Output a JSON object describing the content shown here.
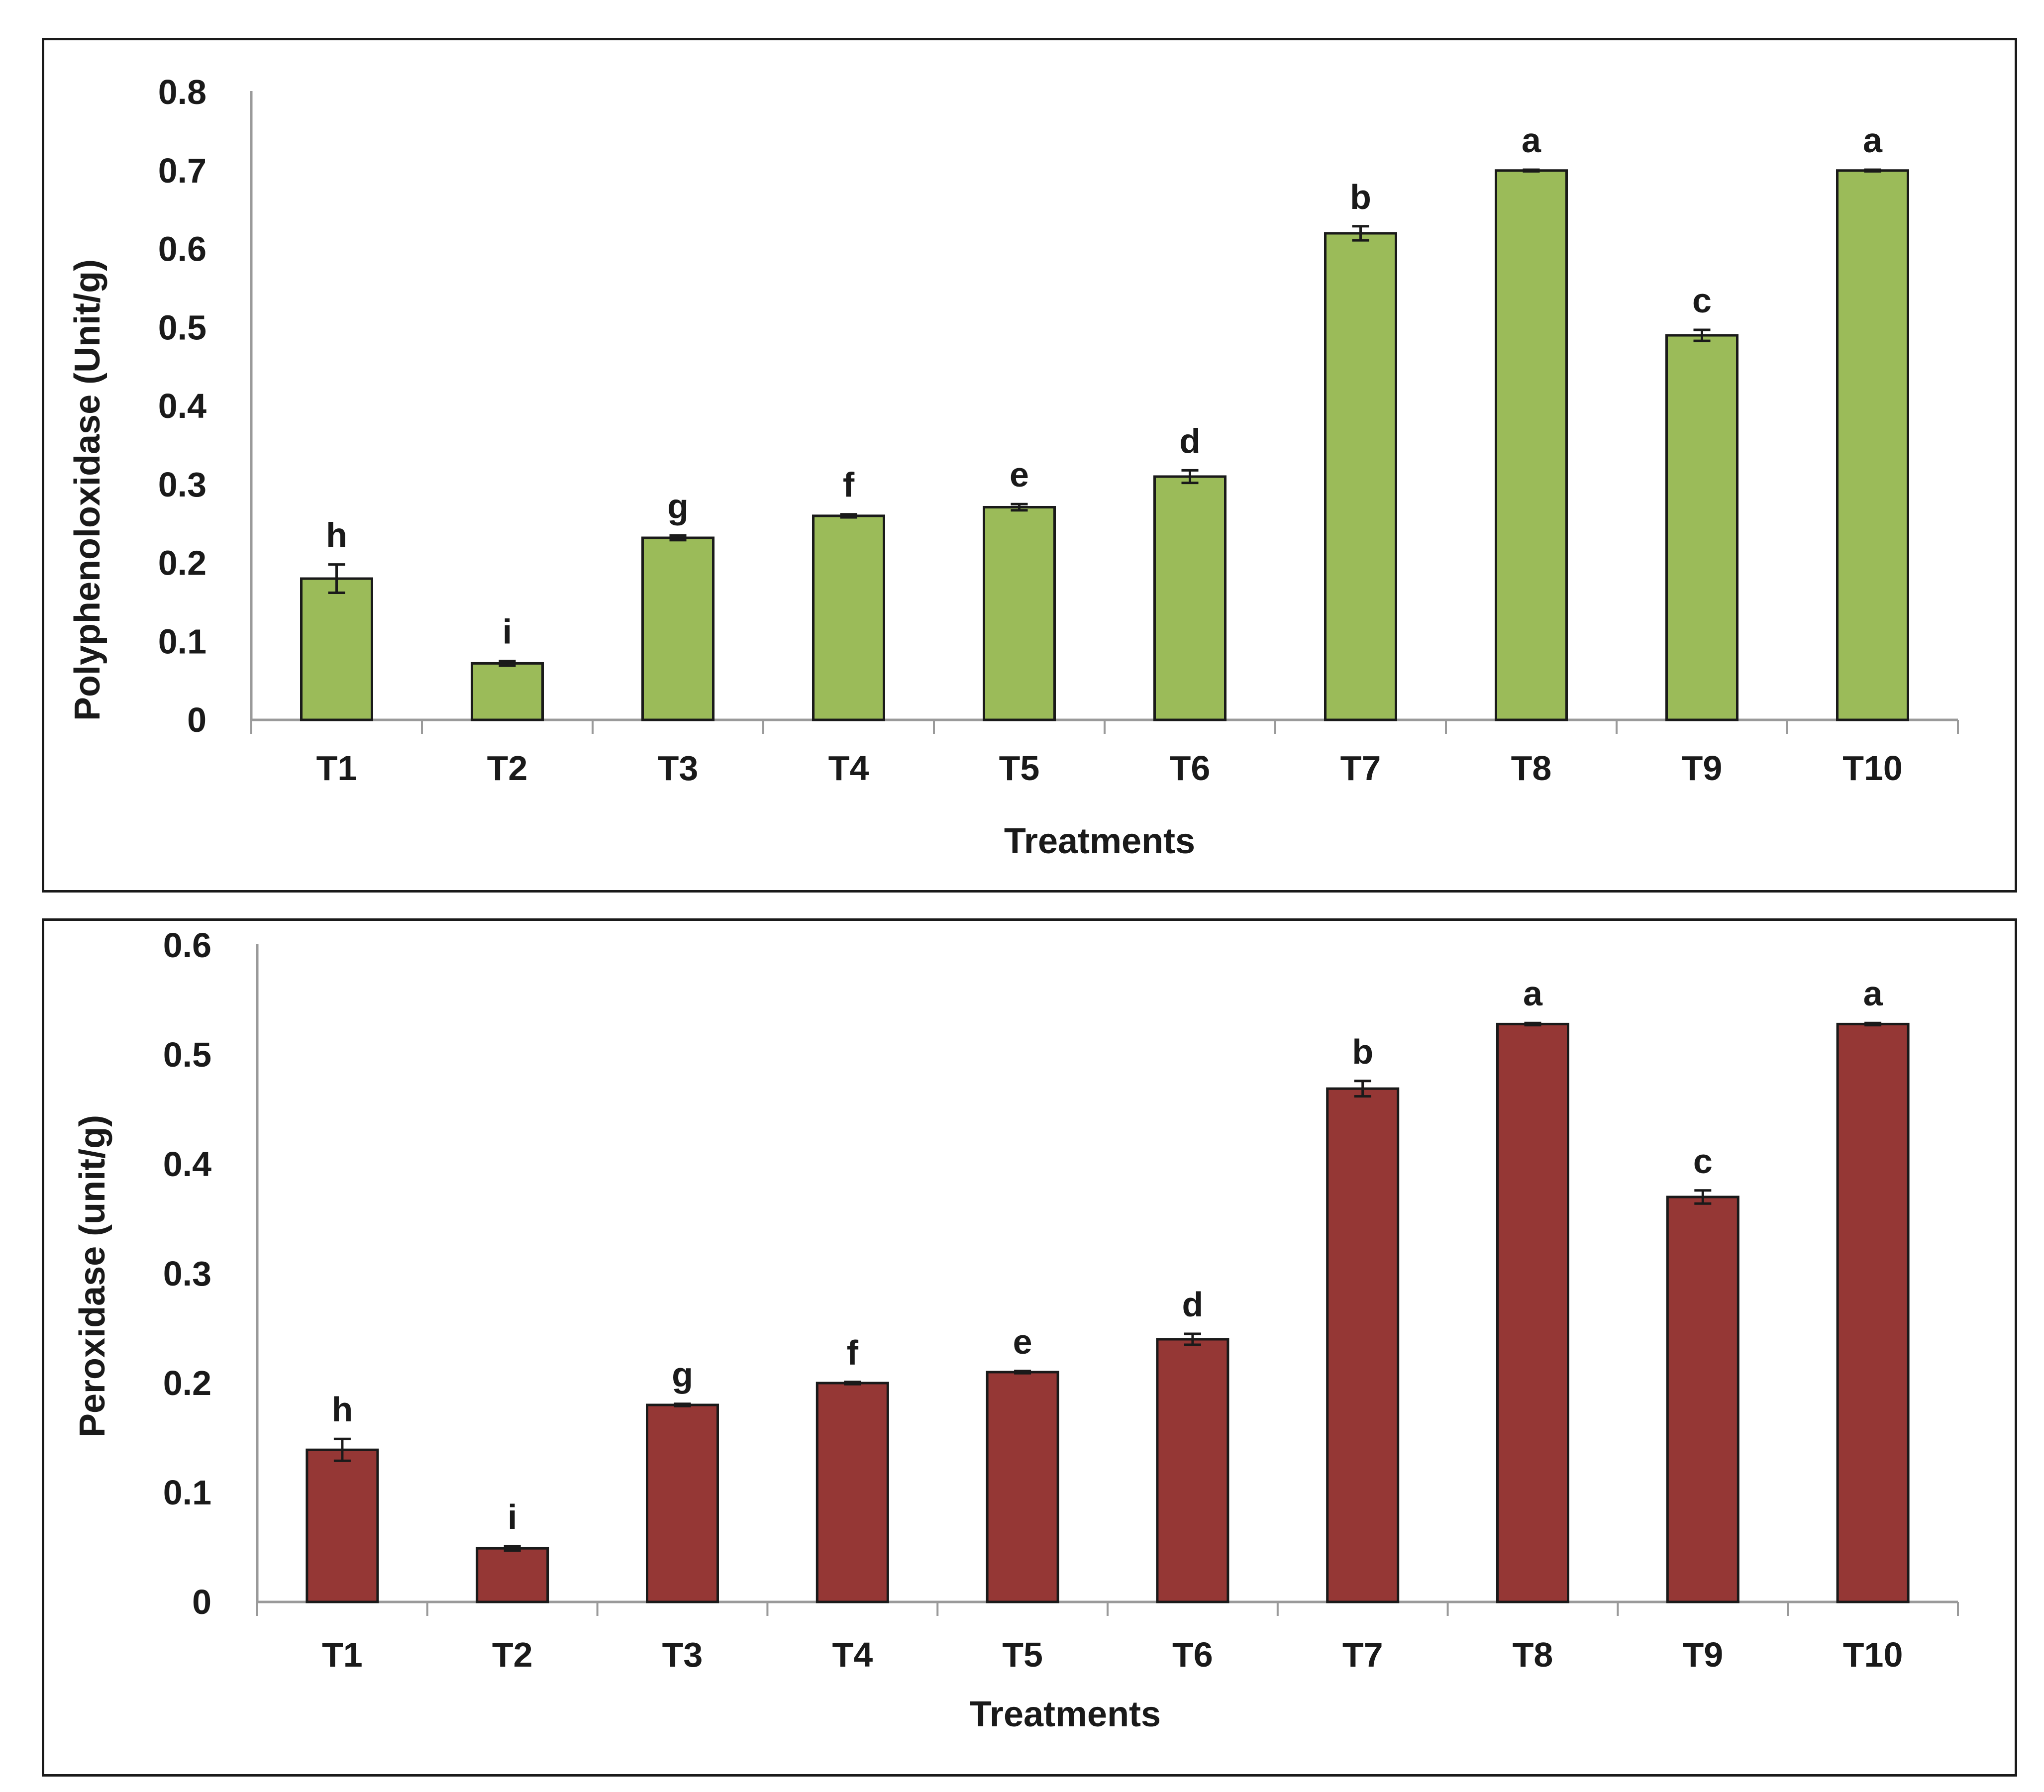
{
  "chart_data": [
    {
      "type": "bar",
      "title": "",
      "xlabel": "Treatments",
      "ylabel": "Polyphenoloxidase (Unit/g)",
      "ylim": [
        0,
        0.8
      ],
      "yticks": [
        "0",
        "0.1",
        "0.2",
        "0.3",
        "0.4",
        "0.5",
        "0.6",
        "0.7",
        "0.8"
      ],
      "categories": [
        "T1",
        "T2",
        "T3",
        "T4",
        "T5",
        "T6",
        "T7",
        "T8",
        "T9",
        "T10"
      ],
      "values": [
        0.18,
        0.072,
        0.232,
        0.26,
        0.271,
        0.31,
        0.62,
        0.7,
        0.49,
        0.7
      ],
      "errors": [
        0.018,
        0.003,
        0.003,
        0.002,
        0.004,
        0.008,
        0.009,
        0.001,
        0.007,
        0.001
      ],
      "significance": [
        "h",
        "i",
        "g",
        "f",
        "e",
        "d",
        "b",
        "a",
        "c",
        "a"
      ],
      "color": "#9bbb59",
      "grid": false
    },
    {
      "type": "bar",
      "title": "",
      "xlabel": "Treatments",
      "ylabel": "Peroxidase (unit/g)",
      "ylim": [
        0,
        0.6
      ],
      "yticks": [
        "0",
        "0.1",
        "0.2",
        "0.3",
        "0.4",
        "0.5",
        "0.6"
      ],
      "categories": [
        "T1",
        "T2",
        "T3",
        "T4",
        "T5",
        "T6",
        "T7",
        "T8",
        "T9",
        "T10"
      ],
      "values": [
        0.139,
        0.049,
        0.18,
        0.2,
        0.21,
        0.24,
        0.469,
        0.528,
        0.37,
        0.528
      ],
      "errors": [
        0.01,
        0.002,
        0.001,
        0.001,
        0.001,
        0.005,
        0.007,
        0.001,
        0.006,
        0.001
      ],
      "significance": [
        "h",
        "i",
        "g",
        "f",
        "e",
        "d",
        "b",
        "a",
        "c",
        "a"
      ],
      "color": "#953735",
      "grid": false
    }
  ]
}
